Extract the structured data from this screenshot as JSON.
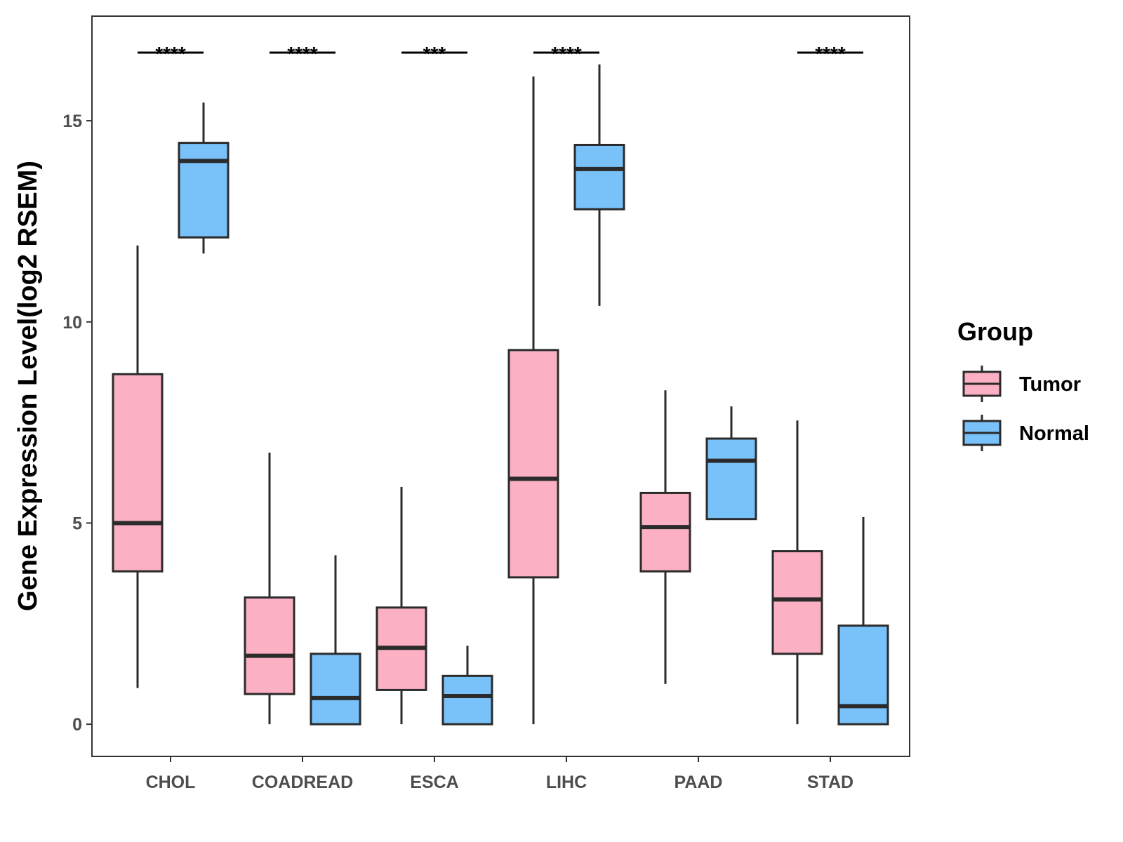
{
  "chart_data": {
    "type": "boxplot",
    "title": "",
    "xlabel": "",
    "ylabel": "Gene Expression Level(log2 RSEM)",
    "ylim": [
      -0.8,
      17.6
    ],
    "yticks": [
      0,
      5,
      10,
      15
    ],
    "categories": [
      "CHOL",
      "COADREAD",
      "ESCA",
      "LIHC",
      "PAAD",
      "STAD"
    ],
    "legend": {
      "title": "Group",
      "position": "right",
      "entries": [
        {
          "name": "Tumor",
          "color": "#FBB1C3"
        },
        {
          "name": "Normal",
          "color": "#79C1F9"
        }
      ]
    },
    "series": [
      {
        "name": "Tumor",
        "color": "#FBB1C3",
        "boxes": [
          {
            "min": 0.9,
            "q1": 3.8,
            "median": 5.0,
            "q3": 8.7,
            "max": 11.9
          },
          {
            "min": 0.0,
            "q1": 0.75,
            "median": 1.7,
            "q3": 3.15,
            "max": 6.75
          },
          {
            "min": 0.0,
            "q1": 0.85,
            "median": 1.9,
            "q3": 2.9,
            "max": 5.9
          },
          {
            "min": 0.0,
            "q1": 3.65,
            "median": 6.1,
            "q3": 9.3,
            "max": 16.1
          },
          {
            "min": 1.0,
            "q1": 3.8,
            "median": 4.9,
            "q3": 5.75,
            "max": 8.3
          },
          {
            "min": 0.0,
            "q1": 1.75,
            "median": 3.1,
            "q3": 4.3,
            "max": 7.55
          }
        ]
      },
      {
        "name": "Normal",
        "color": "#79C1F9",
        "boxes": [
          {
            "min": 11.7,
            "q1": 12.1,
            "median": 14.0,
            "q3": 14.45,
            "max": 15.45
          },
          {
            "min": 0.0,
            "q1": 0.0,
            "median": 0.65,
            "q3": 1.75,
            "max": 4.2
          },
          {
            "min": 0.0,
            "q1": 0.0,
            "median": 0.7,
            "q3": 1.2,
            "max": 1.95
          },
          {
            "min": 10.4,
            "q1": 12.8,
            "median": 13.8,
            "q3": 14.4,
            "max": 16.4
          },
          {
            "min": 5.1,
            "q1": 5.1,
            "median": 6.55,
            "q3": 7.1,
            "max": 7.9
          },
          {
            "min": 0.0,
            "q1": 0.0,
            "median": 0.45,
            "q3": 2.45,
            "max": 5.15
          }
        ]
      }
    ],
    "annotations": [
      "****",
      "****",
      "***",
      "****",
      "",
      "****"
    ]
  }
}
